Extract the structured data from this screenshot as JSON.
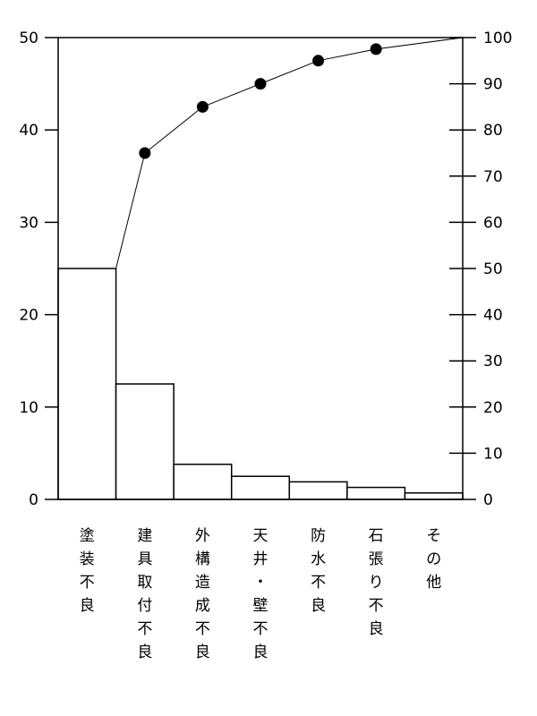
{
  "chart_data": {
    "type": "bar",
    "categories": [
      "塗装不良",
      "建具取付不良",
      "外構造成不良",
      "天井・壁不良",
      "防水不良",
      "石張り不良",
      "その他"
    ],
    "series": [
      {
        "type": "bar",
        "axis": "left",
        "values": [
          25,
          12.5,
          3.8,
          2.5,
          1.9,
          1.3,
          0.7
        ]
      },
      {
        "type": "line",
        "axis": "right",
        "marker": "circle",
        "values": [
          50,
          75,
          85,
          90,
          95,
          97.5,
          100
        ]
      }
    ],
    "y_left": {
      "range": [
        0,
        50
      ],
      "ticks": [
        "0",
        "10",
        "20",
        "30",
        "40",
        "50"
      ]
    },
    "y_right": {
      "range": [
        0,
        100
      ],
      "ticks": [
        "0",
        "10",
        "20",
        "30",
        "40",
        "50",
        "60",
        "70",
        "80",
        "90",
        "100"
      ]
    },
    "title": "",
    "xlabel": "",
    "ylabel": "",
    "grid": false,
    "colors": {
      "stroke": "#000000",
      "bar_fill": "#ffffff",
      "marker": "#000000"
    }
  }
}
